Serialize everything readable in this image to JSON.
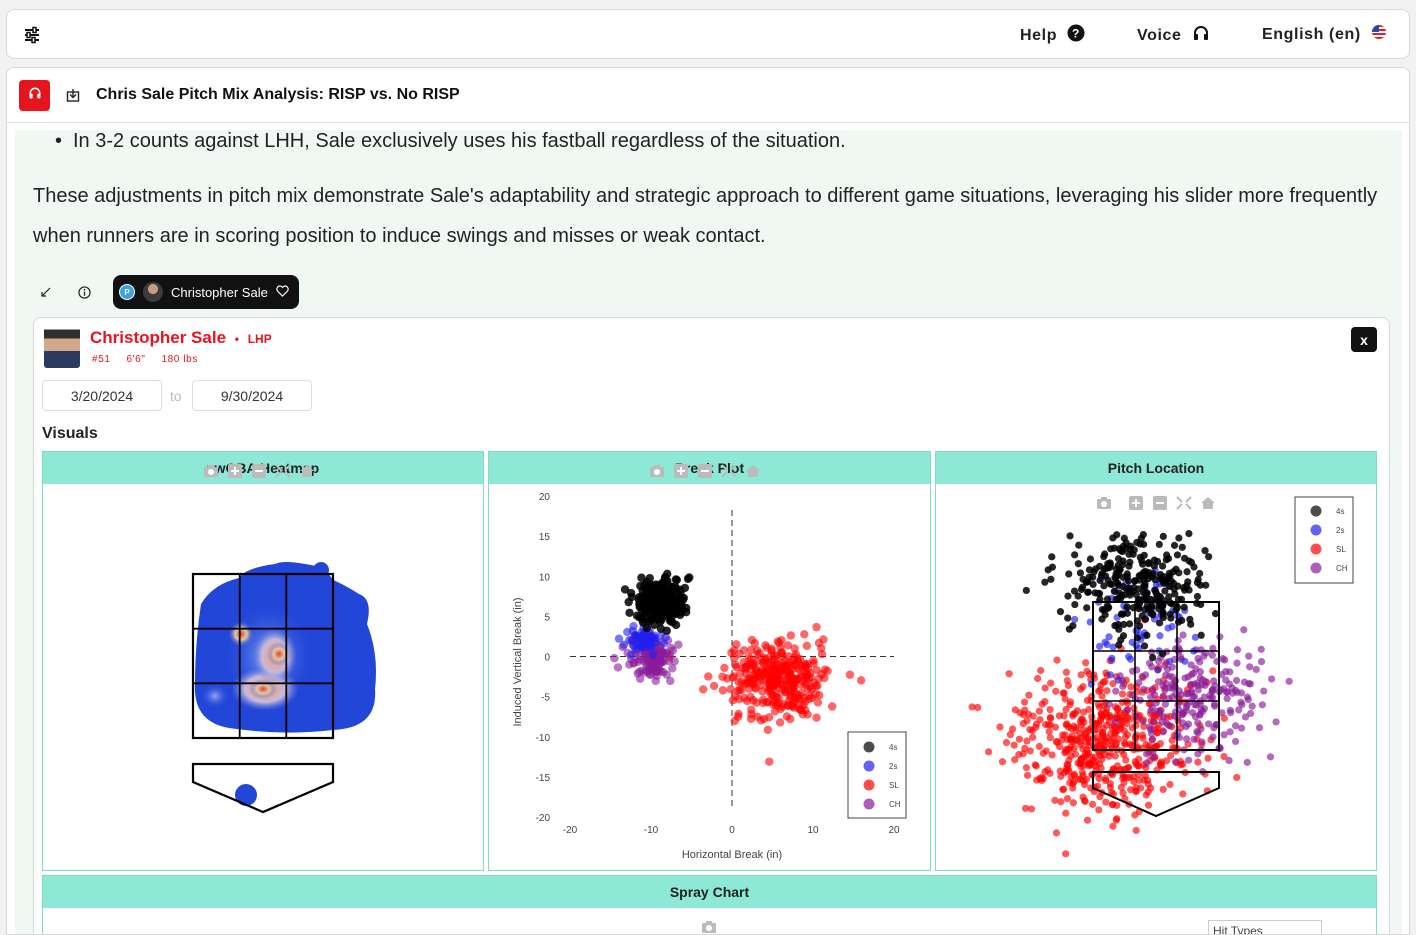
{
  "topbar": {
    "help_label": "Help",
    "voice_label": "Voice",
    "language_label": "English (en)"
  },
  "panel": {
    "title": "Chris Sale Pitch Mix Analysis: RISP vs. No RISP"
  },
  "content": {
    "bullet": "In 3-2 counts against LHH, Sale exclusively uses his fastball regardless of the situation.",
    "paragraph": "These adjustments in pitch mix demonstrate Sale's adaptability and strategic approach to different game situations, leveraging his slider more frequently when runners are in scoring position to induce swings and misses or weak contact."
  },
  "chip": {
    "badge": "P",
    "name": "Christopher Sale"
  },
  "player": {
    "name": "Christopher Sale",
    "separator": "•",
    "hand": "LHP",
    "number": "#51",
    "height": "6'6\"",
    "weight": "180 lbs"
  },
  "dates": {
    "start": "3/20/2024",
    "to": "to",
    "end": "9/30/2024"
  },
  "visuals": {
    "label": "Visuals",
    "heatmap_title": "xwOBA Heatmap",
    "break_title": "Break Plot",
    "location_title": "Pitch Location",
    "spray_title": "Spray Chart",
    "hit_types_placeholder": "Hit Types"
  },
  "close_label": "x",
  "colors": {
    "brand_red": "#e5141d",
    "panel_teal": "#8de8d5",
    "pitch_4s": "#000000",
    "pitch_2s": "#1f1ff0",
    "pitch_sl": "#ff0000",
    "pitch_ch": "#8a1a9a"
  },
  "chart_data": [
    {
      "type": "heatmap",
      "title": "xwOBA Heatmap"
    },
    {
      "type": "scatter",
      "title": "Break Plot",
      "xlabel": "Horizontal Break (in)",
      "ylabel": "Induced Vertical Break (in)",
      "xlim": [
        -20,
        20
      ],
      "ylim": [
        -20,
        20
      ],
      "x_ticks": [
        -20,
        -10,
        0,
        10,
        20
      ],
      "y_ticks": [
        20,
        15,
        10,
        5,
        0,
        -5,
        -10,
        -15,
        -20
      ],
      "legend_position": "bottom-right",
      "series": [
        {
          "name": "4s",
          "center": [
            -9,
            7
          ],
          "spread": [
            3.8,
            3.6
          ],
          "count": 220
        },
        {
          "name": "2s",
          "center": [
            -11,
            2
          ],
          "spread": [
            3,
            2.5
          ],
          "count": 50
        },
        {
          "name": "SL",
          "center": [
            5.5,
            -3
          ],
          "spread": [
            8.2,
            6.0
          ],
          "count": 320
        },
        {
          "name": "CH",
          "center": [
            -10,
            0
          ],
          "spread": [
            3.6,
            3.3
          ],
          "count": 120
        }
      ]
    },
    {
      "type": "scatter",
      "title": "Pitch Location",
      "legend_position": "top-right",
      "series": [
        {
          "name": "4s"
        },
        {
          "name": "2s"
        },
        {
          "name": "SL"
        },
        {
          "name": "CH"
        }
      ]
    }
  ]
}
